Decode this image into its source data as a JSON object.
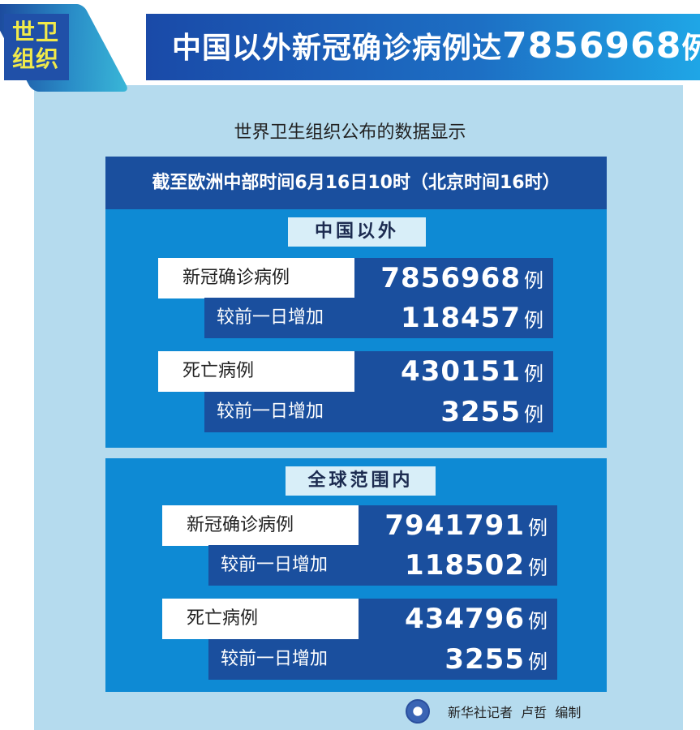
{
  "header": {
    "badge": "世卫组织",
    "badge_line1": "世卫",
    "badge_line2": "组织",
    "title_prefix": "中国以外新冠确诊病例达",
    "title_number": "7856968",
    "title_suffix": "例"
  },
  "subtitle": "世界卫生组织公布的数据显示",
  "timestamp": "截至欧洲中部时间6月16日10时（北京时间16时）",
  "sections": [
    {
      "label": "中国以外",
      "rows": [
        {
          "label": "新冠确诊病例",
          "value": "7856968",
          "unit": "例"
        },
        {
          "label": "较前一日增加",
          "value": "118457",
          "unit": "例"
        },
        {
          "label": "死亡病例",
          "value": "430151",
          "unit": "例"
        },
        {
          "label": "较前一日增加",
          "value": "3255",
          "unit": "例"
        }
      ]
    },
    {
      "label": "全球范围内",
      "rows": [
        {
          "label": "新冠确诊病例",
          "value": "7941791",
          "unit": "例"
        },
        {
          "label": "较前一日增加",
          "value": "118502",
          "unit": "例"
        },
        {
          "label": "死亡病例",
          "value": "434796",
          "unit": "例"
        },
        {
          "label": "较前一日增加",
          "value": "3255",
          "unit": "例"
        }
      ]
    }
  ],
  "footer": {
    "credit": "新华社记者  卢哲  编制",
    "logo": "xinhua-logo"
  },
  "colors": {
    "panel": "#b5dbee",
    "box": "#0e8ad4",
    "dark": "#1a4f9e",
    "badge_text": "#f1ea4a"
  }
}
